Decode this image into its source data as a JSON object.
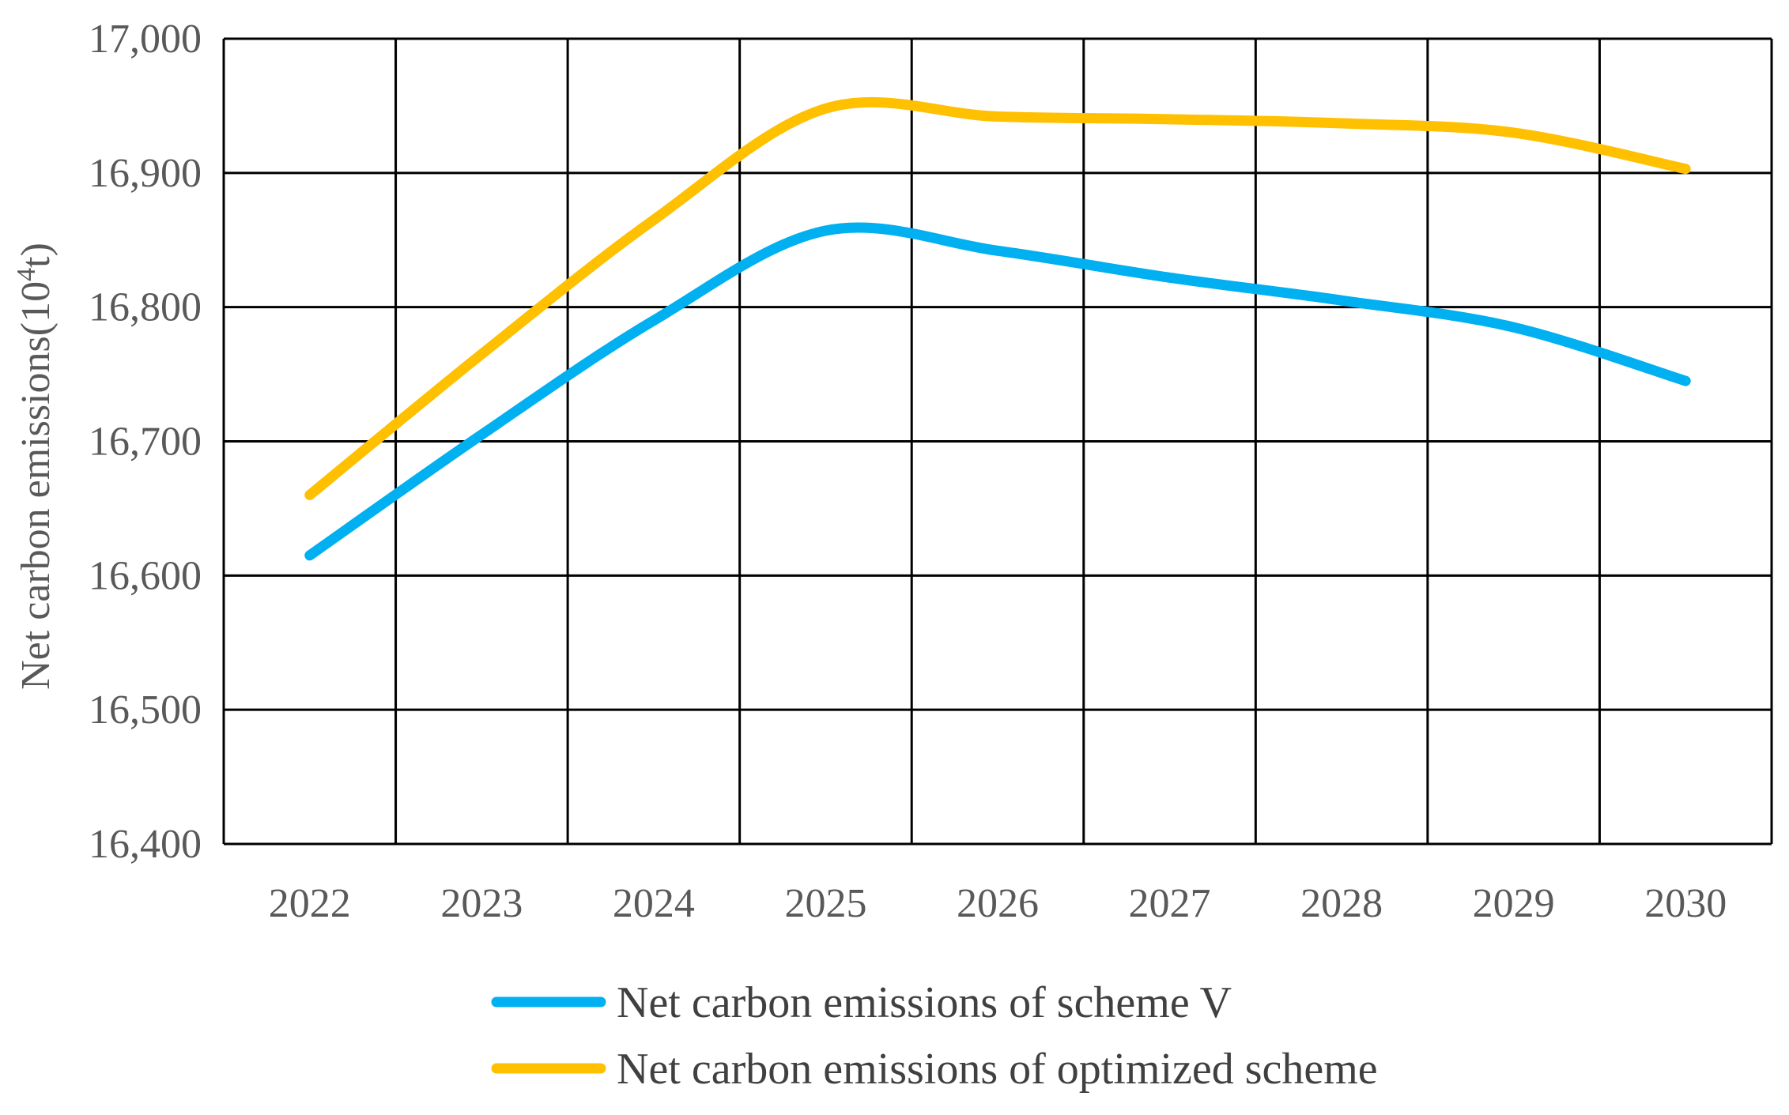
{
  "chart_data": {
    "type": "line",
    "title": "",
    "xlabel": "",
    "ylabel": "Net carbon emissions(10",
    "ylabel_sup": "4",
    "ylabel_suffix": "t)",
    "categories": [
      "2022",
      "2023",
      "2024",
      "2025",
      "2026",
      "2027",
      "2028",
      "2029",
      "2030"
    ],
    "ylim": [
      16400,
      17000
    ],
    "yticks": [
      16400,
      16500,
      16600,
      16700,
      16800,
      16900,
      17000
    ],
    "ytick_labels": [
      "16,400",
      "16,500",
      "16,600",
      "16,700",
      "16,800",
      "16,900",
      "17,000"
    ],
    "grid": true,
    "legend_position": "bottom",
    "series": [
      {
        "name": "Net carbon emissions of scheme V",
        "color": "#00B0F0",
        "values": [
          16615,
          16705,
          16790,
          16857,
          16842,
          16822,
          16805,
          16785,
          16745
        ]
      },
      {
        "name": "Net carbon emissions of optimized scheme",
        "color": "#FFC000",
        "values": [
          16660,
          16765,
          16865,
          16948,
          16942,
          16940,
          16937,
          16930,
          16903
        ]
      }
    ]
  }
}
